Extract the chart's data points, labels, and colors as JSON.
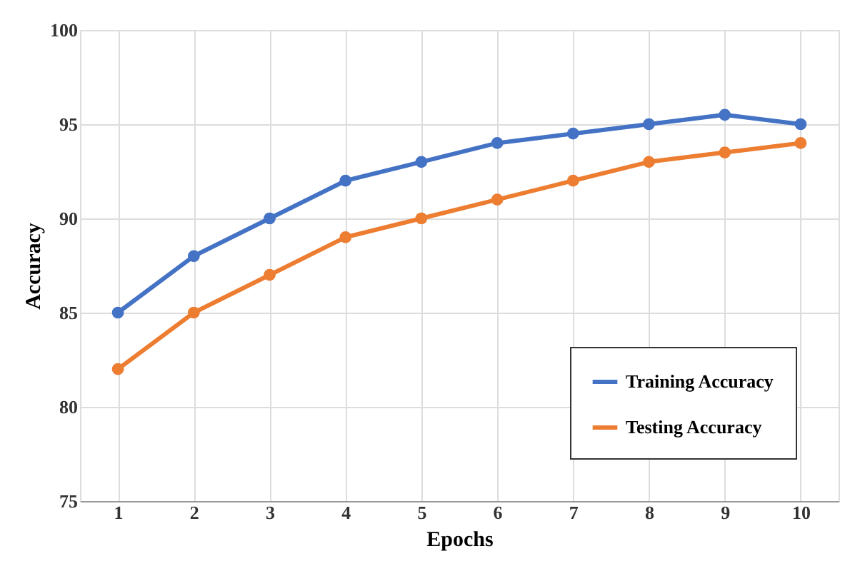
{
  "chart_data": {
    "type": "line",
    "xlabel": "Epochs",
    "ylabel": "Accuracy",
    "categories": [
      "1",
      "2",
      "3",
      "4",
      "5",
      "6",
      "7",
      "8",
      "9",
      "10"
    ],
    "series": [
      {
        "name": "Training Accuracy",
        "color": "#4472c4",
        "values": [
          85,
          88,
          90,
          92,
          93,
          94,
          94.5,
          95,
          95.5,
          95
        ]
      },
      {
        "name": "Testing Accuracy",
        "color": "#ed7d31",
        "values": [
          82,
          85,
          87,
          89,
          90,
          91,
          92,
          93,
          93.5,
          94
        ]
      }
    ],
    "ylim": [
      75,
      100
    ],
    "yticks": [
      75,
      80,
      85,
      90,
      95,
      100
    ],
    "grid": true,
    "legend": "bottom right",
    "marker": "circle",
    "line_style": "solid"
  }
}
